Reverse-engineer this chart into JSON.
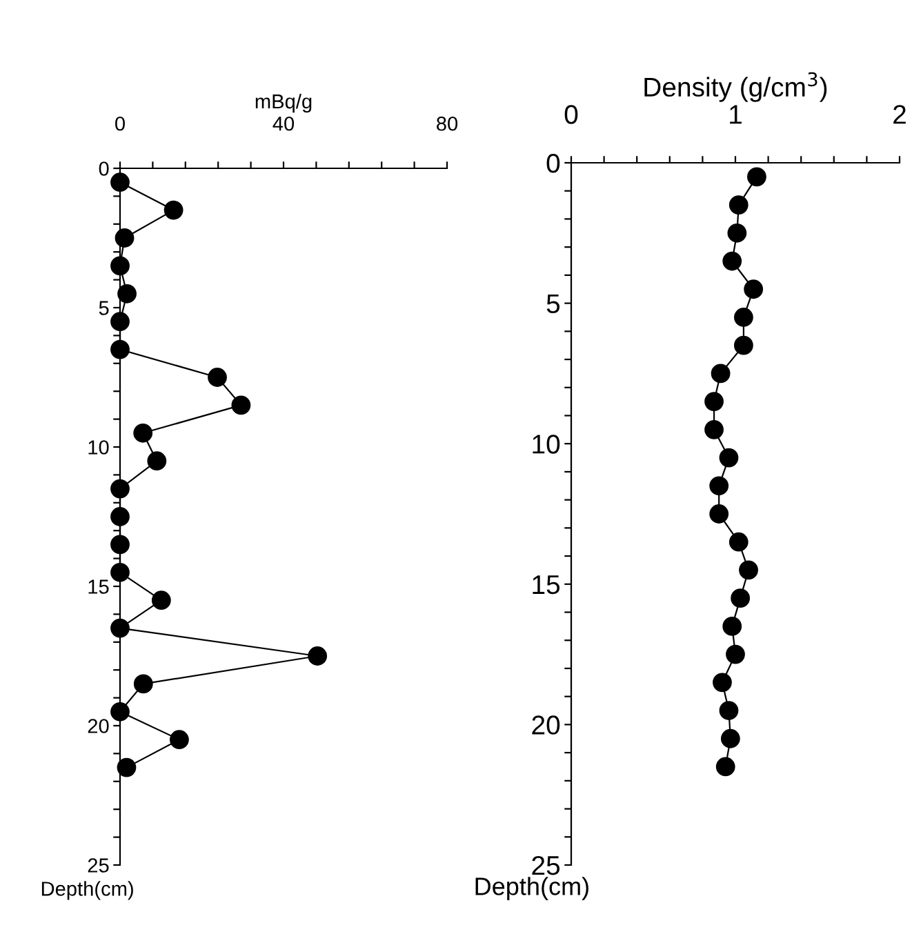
{
  "chart_data": [
    {
      "type": "line",
      "orientation": "horizontal",
      "xlabel": "mBq/g",
      "ylabel": "Depth(cm)",
      "marker": "circle",
      "line_style": "solid",
      "x": [
        0.5,
        1.5,
        2.5,
        3.5,
        4.5,
        5.5,
        6.5,
        7.5,
        8.5,
        9.5,
        10.5,
        11.5,
        12.5,
        13.5,
        14.5,
        15.5,
        16.5,
        17.5,
        18.5,
        19.5,
        20.5,
        21.5
      ],
      "series": [
        {
          "color": "#000000",
          "values": [
            0,
            13.1,
            1.1,
            0,
            1.7,
            0,
            0,
            23.8,
            29.6,
            5.6,
            9.0,
            0,
            0,
            0,
            0,
            10.1,
            0,
            48.3,
            5.7,
            0,
            14.5,
            1.6
          ]
        }
      ],
      "xlim": [
        0,
        80
      ],
      "xticks": [
        0,
        {
          "value": 8,
          "label": null
        },
        {
          "value": 16,
          "label": null
        },
        {
          "value": 24,
          "label": null
        },
        {
          "value": 32,
          "label": null
        },
        40,
        {
          "value": 48,
          "label": null
        },
        {
          "value": 56,
          "label": null
        },
        {
          "value": 64,
          "label": null
        },
        {
          "value": 72,
          "label": null
        },
        80
      ],
      "ylim": [
        25,
        0
      ],
      "yticks": [
        0,
        {
          "value": 1,
          "label": null
        },
        {
          "value": 2,
          "label": null
        },
        {
          "value": 3,
          "label": null
        },
        {
          "value": 4,
          "label": null
        },
        5,
        {
          "value": 6,
          "label": null
        },
        {
          "value": 7,
          "label": null
        },
        {
          "value": 8,
          "label": null
        },
        {
          "value": 9,
          "label": null
        },
        10,
        {
          "value": 11,
          "label": null
        },
        {
          "value": 12,
          "label": null
        },
        {
          "value": 13,
          "label": null
        },
        {
          "value": 14,
          "label": null
        },
        15,
        {
          "value": 16,
          "label": null
        },
        {
          "value": 17,
          "label": null
        },
        {
          "value": 18,
          "label": null
        },
        {
          "value": 19,
          "label": null
        },
        20,
        {
          "value": 21,
          "label": null
        },
        {
          "value": 22,
          "label": null
        },
        {
          "value": 23,
          "label": null
        },
        {
          "value": 24,
          "label": null
        },
        25
      ]
    },
    {
      "type": "line",
      "orientation": "horizontal",
      "xlabel": "Density (g/cm$^{3}$)",
      "ylabel": "Depth(cm)",
      "marker": "circle",
      "line_style": "solid",
      "x": [
        0.5,
        1.5,
        2.5,
        3.5,
        4.5,
        5.5,
        6.5,
        7.5,
        8.5,
        9.5,
        10.5,
        11.5,
        12.5,
        13.5,
        14.5,
        15.5,
        16.5,
        17.5,
        18.5,
        19.5,
        20.5,
        21.5
      ],
      "series": [
        {
          "color": "#000000",
          "values": [
            1.13,
            1.02,
            1.01,
            0.98,
            1.11,
            1.05,
            1.05,
            0.91,
            0.87,
            0.87,
            0.96,
            0.9,
            0.9,
            1.02,
            1.08,
            1.03,
            0.98,
            1.0,
            0.92,
            0.96,
            0.97,
            0.94
          ]
        }
      ],
      "xlim": [
        0,
        2
      ],
      "xticks": [
        0,
        {
          "value": 0.2,
          "label": null
        },
        {
          "value": 0.4,
          "label": null
        },
        {
          "value": 0.6,
          "label": null
        },
        {
          "value": 0.8,
          "label": null
        },
        1,
        {
          "value": 1.2,
          "label": null
        },
        {
          "value": 1.4,
          "label": null
        },
        {
          "value": 1.6,
          "label": null
        },
        {
          "value": 1.8,
          "label": null
        },
        2
      ],
      "ylim": [
        25,
        0
      ],
      "yticks": [
        0,
        {
          "value": 1,
          "label": null
        },
        {
          "value": 2,
          "label": null
        },
        {
          "value": 3,
          "label": null
        },
        {
          "value": 4,
          "label": null
        },
        5,
        {
          "value": 6,
          "label": null
        },
        {
          "value": 7,
          "label": null
        },
        {
          "value": 8,
          "label": null
        },
        {
          "value": 9,
          "label": null
        },
        10,
        {
          "value": 11,
          "label": null
        },
        {
          "value": 12,
          "label": null
        },
        {
          "value": 13,
          "label": null
        },
        {
          "value": 14,
          "label": null
        },
        15,
        {
          "value": 16,
          "label": null
        },
        {
          "value": 17,
          "label": null
        },
        {
          "value": 18,
          "label": null
        },
        {
          "value": 19,
          "label": null
        },
        20,
        {
          "value": 21,
          "label": null
        },
        {
          "value": 22,
          "label": null
        },
        {
          "value": 23,
          "label": null
        },
        {
          "value": 24,
          "label": null
        },
        25
      ]
    }
  ]
}
